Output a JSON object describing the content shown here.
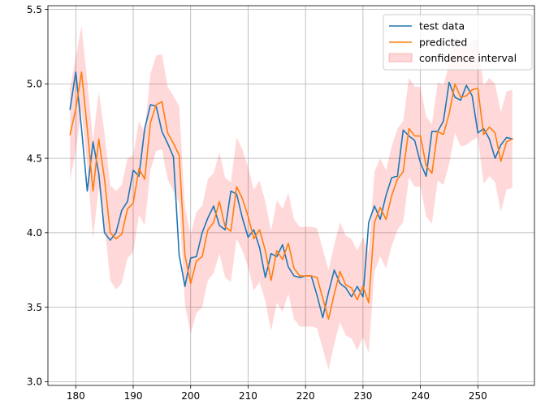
{
  "chart_data": {
    "type": "line",
    "title": "",
    "xlabel": "",
    "ylabel": "",
    "xlim": [
      175.15,
      259.85
    ],
    "ylim": [
      2.975,
      5.525
    ],
    "xticks": [
      180,
      190,
      200,
      210,
      220,
      230,
      240,
      250
    ],
    "yticks": [
      3.0,
      3.5,
      4.0,
      4.5,
      5.0,
      5.5
    ],
    "xtick_labels": [
      "180",
      "190",
      "200",
      "210",
      "220",
      "230",
      "240",
      "250"
    ],
    "ytick_labels": [
      "3.0",
      "3.5",
      "4.0",
      "4.5",
      "5.0",
      "5.5"
    ],
    "grid": true,
    "legend_position": "top-right",
    "x": [
      179,
      180,
      181,
      182,
      183,
      184,
      185,
      186,
      187,
      188,
      189,
      190,
      191,
      192,
      193,
      194,
      195,
      196,
      197,
      198,
      199,
      200,
      201,
      202,
      203,
      204,
      205,
      206,
      207,
      208,
      209,
      210,
      211,
      212,
      213,
      214,
      215,
      216,
      217,
      218,
      219,
      220,
      221,
      222,
      223,
      224,
      225,
      226,
      227,
      228,
      229,
      230,
      231,
      232,
      233,
      234,
      235,
      236,
      237,
      238,
      239,
      240,
      241,
      242,
      243,
      244,
      245,
      246,
      247,
      248,
      249,
      250,
      251,
      252,
      253,
      254,
      255,
      256
    ],
    "series": [
      {
        "name": "test data",
        "color": "#1f77b4",
        "values": [
          4.83,
          5.08,
          4.7,
          4.28,
          4.61,
          4.4,
          4.0,
          3.95,
          4.0,
          4.15,
          4.21,
          4.42,
          4.38,
          4.7,
          4.86,
          4.85,
          4.68,
          4.6,
          4.51,
          3.85,
          3.64,
          3.83,
          3.84,
          4.0,
          4.1,
          4.18,
          4.05,
          4.02,
          4.28,
          4.26,
          4.1,
          3.97,
          4.02,
          3.9,
          3.7,
          3.86,
          3.84,
          3.92,
          3.77,
          3.71,
          3.7,
          3.71,
          3.71,
          3.58,
          3.43,
          3.6,
          3.75,
          3.66,
          3.63,
          3.57,
          3.64,
          3.57,
          4.07,
          4.18,
          4.09,
          4.25,
          4.37,
          4.38,
          4.69,
          4.65,
          4.62,
          4.47,
          4.38,
          4.68,
          4.68,
          4.75,
          5.01,
          4.91,
          4.89,
          4.99,
          4.92,
          4.67,
          4.7,
          4.63,
          4.5,
          4.59,
          4.64,
          4.63
        ]
      },
      {
        "name": "predicted",
        "color": "#ff7f0e",
        "values": [
          4.66,
          4.83,
          5.08,
          4.7,
          4.28,
          4.63,
          4.36,
          4.0,
          3.96,
          3.99,
          4.16,
          4.2,
          4.43,
          4.36,
          4.74,
          4.86,
          4.88,
          4.67,
          4.6,
          4.52,
          3.85,
          3.66,
          3.81,
          3.84,
          4.02,
          4.07,
          4.21,
          4.04,
          4.01,
          4.31,
          4.23,
          4.11,
          3.96,
          4.02,
          3.88,
          3.68,
          3.88,
          3.82,
          3.93,
          3.76,
          3.71,
          3.71,
          3.71,
          3.7,
          3.56,
          3.42,
          3.59,
          3.74,
          3.65,
          3.63,
          3.55,
          3.64,
          3.53,
          4.07,
          4.17,
          4.09,
          4.25,
          4.36,
          4.41,
          4.7,
          4.65,
          4.65,
          4.45,
          4.4,
          4.68,
          4.66,
          4.8,
          5.0,
          4.91,
          4.92,
          4.96,
          4.97,
          4.66,
          4.71,
          4.67,
          4.48,
          4.61,
          4.63
        ]
      }
    ],
    "confidence_band": {
      "name": "confidence interval",
      "color": "#ff0000",
      "alpha": 0.15,
      "lower": [
        4.35,
        4.55,
        4.82,
        4.45,
        3.96,
        4.3,
        4.05,
        3.68,
        3.62,
        3.66,
        3.83,
        3.87,
        4.12,
        4.05,
        4.42,
        4.55,
        4.56,
        4.36,
        4.28,
        4.2,
        3.52,
        3.32,
        3.46,
        3.5,
        3.68,
        3.73,
        3.86,
        3.7,
        3.67,
        3.96,
        3.88,
        3.77,
        3.61,
        3.67,
        3.54,
        3.34,
        3.53,
        3.47,
        3.59,
        3.42,
        3.37,
        3.37,
        3.37,
        3.36,
        3.22,
        3.08,
        3.25,
        3.4,
        3.31,
        3.29,
        3.21,
        3.3,
        3.19,
        3.74,
        3.84,
        3.76,
        3.91,
        4.02,
        4.07,
        4.37,
        4.31,
        4.31,
        4.11,
        4.06,
        4.35,
        4.32,
        4.46,
        4.67,
        4.58,
        4.59,
        4.62,
        4.64,
        4.33,
        4.38,
        4.34,
        4.14,
        4.29,
        4.3
      ],
      "upper": [
        4.97,
        5.18,
        5.39,
        5.02,
        4.62,
        4.95,
        4.67,
        4.32,
        4.28,
        4.32,
        4.5,
        4.52,
        4.75,
        4.67,
        5.07,
        5.19,
        5.2,
        4.98,
        4.92,
        4.85,
        4.17,
        3.99,
        4.14,
        4.18,
        4.36,
        4.4,
        4.54,
        4.37,
        4.34,
        4.64,
        4.56,
        4.44,
        4.29,
        4.35,
        4.21,
        4.01,
        4.22,
        4.16,
        4.27,
        4.09,
        4.04,
        4.04,
        4.04,
        4.03,
        3.89,
        3.75,
        3.92,
        4.07,
        3.98,
        3.96,
        3.88,
        3.97,
        3.87,
        4.41,
        4.5,
        4.42,
        4.58,
        4.7,
        4.75,
        5.04,
        4.98,
        4.98,
        4.78,
        4.73,
        5.01,
        4.99,
        5.13,
        5.34,
        5.24,
        5.25,
        5.29,
        5.3,
        4.99,
        5.04,
        5.0,
        4.81,
        4.95,
        4.96
      ]
    }
  }
}
